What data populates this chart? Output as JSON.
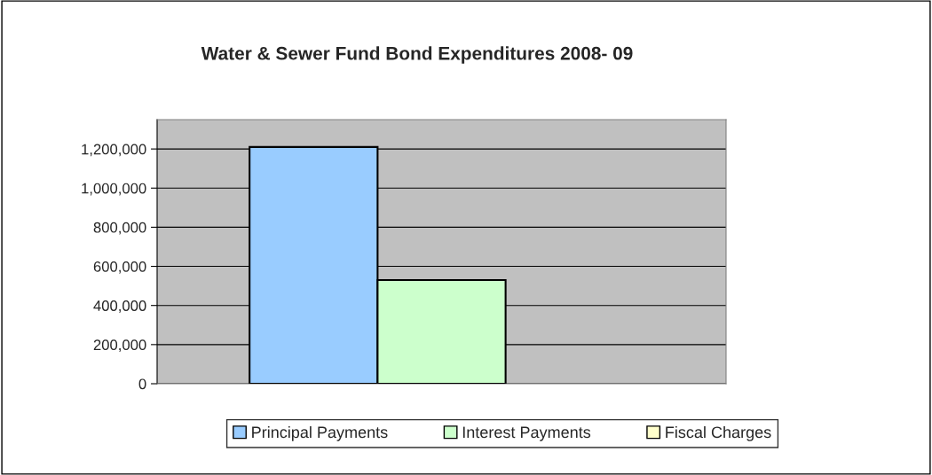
{
  "chart_data": {
    "type": "bar",
    "title": "Water & Sewer Fund Bond Expenditures 2008- 09",
    "categories": [
      null
    ],
    "series": [
      {
        "name": "Principal Payments",
        "color": "#99ccff",
        "values": [
          1210000
        ]
      },
      {
        "name": "Interest Payments",
        "color": "#ccffcc",
        "values": [
          530000
        ]
      },
      {
        "name": "Fiscal Charges",
        "color": "#ffffcc",
        "values": [
          null
        ]
      }
    ],
    "ylim": [
      0,
      1350000
    ],
    "yticks": [
      {
        "value": 0,
        "label": "0"
      },
      {
        "value": 200000,
        "label": "200,000"
      },
      {
        "value": 400000,
        "label": "400,000"
      },
      {
        "value": 600000,
        "label": "600,000"
      },
      {
        "value": 800000,
        "label": "800,000"
      },
      {
        "value": 1000000,
        "label": "1,000,000"
      },
      {
        "value": 1200000,
        "label": "1,200,000"
      }
    ],
    "grid": "y",
    "legend": "bottom"
  }
}
